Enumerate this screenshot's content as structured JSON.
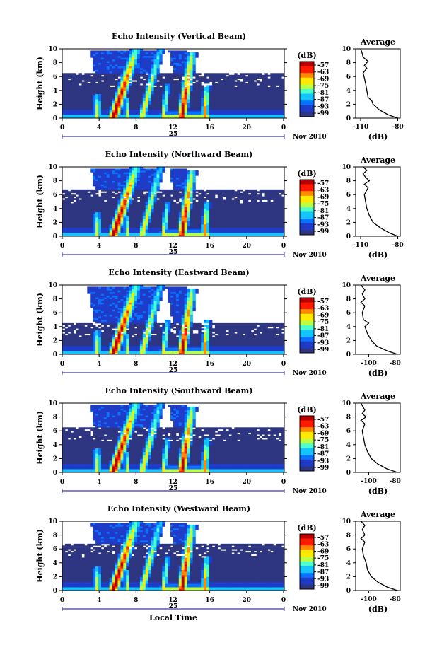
{
  "chart_data": [
    {
      "type": "heatmap",
      "title": "Echo Intensity (Vertical Beam)",
      "ylabel": "Height (km)",
      "x_ticks": [
        "0",
        "4",
        "8",
        "12",
        "16",
        "20",
        "0"
      ],
      "y_ticks": [
        "0",
        "2",
        "4",
        "6",
        "8",
        "10"
      ],
      "date_label": "25",
      "month_label": "Nov 2010",
      "xlim": [
        0,
        24
      ],
      "ylim": [
        0,
        10
      ],
      "colorbar": {
        "label": "(dB)",
        "ticks": [
          "-57",
          "-63",
          "-69",
          "-75",
          "-81",
          "-87",
          "-93",
          "-99"
        ]
      },
      "cloud_top_km": 6.5,
      "profile": {
        "title": "Average",
        "xlabel": "(dB)",
        "x_ticks": [
          "-110",
          "-80"
        ],
        "y_ticks": [
          "0",
          "2",
          "4",
          "6",
          "8",
          "10"
        ],
        "xlim": [
          -114,
          -78
        ],
        "points": [
          [
            -80,
            0
          ],
          [
            -88,
            0.5
          ],
          [
            -95,
            1.2
          ],
          [
            -100,
            2
          ],
          [
            -101,
            2.5
          ],
          [
            -104,
            3
          ],
          [
            -105,
            4
          ],
          [
            -106,
            5
          ],
          [
            -107,
            5.8
          ],
          [
            -108,
            6.5
          ],
          [
            -105,
            7.2
          ],
          [
            -107,
            7.6
          ],
          [
            -104,
            8.2
          ],
          [
            -108,
            8.8
          ],
          [
            -109,
            9.5
          ],
          [
            -110,
            10
          ]
        ]
      }
    },
    {
      "type": "heatmap",
      "title": "Echo Intensity (Northward Beam)",
      "ylabel": "Height (km)",
      "x_ticks": [
        "0",
        "4",
        "8",
        "12",
        "16",
        "20",
        "0"
      ],
      "y_ticks": [
        "0",
        "2",
        "4",
        "6",
        "8",
        "10"
      ],
      "date_label": "25",
      "month_label": "Nov 2010",
      "xlim": [
        0,
        24
      ],
      "ylim": [
        0,
        10
      ],
      "colorbar": {
        "label": "(dB)",
        "ticks": [
          "-57",
          "-63",
          "-69",
          "-75",
          "-81",
          "-87",
          "-93",
          "-99"
        ]
      },
      "cloud_top_km": 6.8,
      "profile": {
        "title": "Average",
        "xlabel": "(dB)",
        "x_ticks": [
          "-110",
          "-80"
        ],
        "y_ticks": [
          "0",
          "2",
          "4",
          "6",
          "8",
          "10"
        ],
        "xlim": [
          -114,
          -78
        ],
        "points": [
          [
            -80,
            0
          ],
          [
            -87,
            0.5
          ],
          [
            -94,
            1.2
          ],
          [
            -100,
            2
          ],
          [
            -103,
            3
          ],
          [
            -105,
            4
          ],
          [
            -106,
            5
          ],
          [
            -107,
            6
          ],
          [
            -104,
            7
          ],
          [
            -107,
            7.5
          ],
          [
            -103,
            8
          ],
          [
            -106,
            8.5
          ],
          [
            -108,
            9
          ],
          [
            -105,
            9.5
          ],
          [
            -108,
            10
          ]
        ]
      }
    },
    {
      "type": "heatmap",
      "title": "Echo Intensity (Eastward Beam)",
      "ylabel": "Height (km)",
      "x_ticks": [
        "0",
        "4",
        "8",
        "12",
        "16",
        "20",
        "0"
      ],
      "y_ticks": [
        "0",
        "2",
        "4",
        "6",
        "8",
        "10"
      ],
      "date_label": "25",
      "month_label": "Nov 2010",
      "xlim": [
        0,
        24
      ],
      "ylim": [
        0,
        10
      ],
      "colorbar": {
        "label": "(dB)",
        "ticks": [
          "-57",
          "-63",
          "-69",
          "-75",
          "-81",
          "-87",
          "-93",
          "-99"
        ]
      },
      "cloud_top_km": 4.5,
      "profile": {
        "title": "Average",
        "xlabel": "(dB)",
        "x_ticks": [
          "-100",
          "-80"
        ],
        "y_ticks": [
          "0",
          "2",
          "4",
          "6",
          "8",
          "10"
        ],
        "xlim": [
          -110,
          -76
        ],
        "points": [
          [
            -78,
            0
          ],
          [
            -86,
            0.5
          ],
          [
            -94,
            1.2
          ],
          [
            -98,
            2
          ],
          [
            -101,
            3
          ],
          [
            -103,
            4
          ],
          [
            -100,
            4.5
          ],
          [
            -104,
            5
          ],
          [
            -105,
            6
          ],
          [
            -103,
            7
          ],
          [
            -106,
            7.5
          ],
          [
            -103,
            8
          ],
          [
            -105,
            8.7
          ],
          [
            -103,
            9.3
          ],
          [
            -106,
            10
          ]
        ]
      }
    },
    {
      "type": "heatmap",
      "title": "Echo Intensity (Southward Beam)",
      "ylabel": "Height (km)",
      "x_ticks": [
        "0",
        "4",
        "8",
        "12",
        "16",
        "20",
        "0"
      ],
      "y_ticks": [
        "0",
        "2",
        "4",
        "6",
        "8",
        "10"
      ],
      "date_label": "25",
      "month_label": "Nov 2010",
      "xlim": [
        0,
        24
      ],
      "ylim": [
        0,
        10
      ],
      "colorbar": {
        "label": "(dB)",
        "ticks": [
          "-57",
          "-63",
          "-69",
          "-75",
          "-81",
          "-87",
          "-93",
          "-99"
        ]
      },
      "cloud_top_km": 6.5,
      "profile": {
        "title": "Average",
        "xlabel": "(dB)",
        "x_ticks": [
          "-100",
          "-80"
        ],
        "y_ticks": [
          "0",
          "2",
          "4",
          "6",
          "8",
          "10"
        ],
        "xlim": [
          -110,
          -76
        ],
        "points": [
          [
            -78,
            0
          ],
          [
            -86,
            0.5
          ],
          [
            -93,
            1.2
          ],
          [
            -98,
            2
          ],
          [
            -101,
            3
          ],
          [
            -103,
            4
          ],
          [
            -104,
            5
          ],
          [
            -105,
            6
          ],
          [
            -103,
            7
          ],
          [
            -106,
            7.5
          ],
          [
            -102,
            8
          ],
          [
            -105,
            8.5
          ],
          [
            -103,
            9
          ],
          [
            -106,
            10
          ]
        ]
      }
    },
    {
      "type": "heatmap",
      "title": "Echo Intensity (Westward Beam)",
      "ylabel": "Height (km)",
      "xlabel": "Local Time",
      "x_ticks": [
        "0",
        "4",
        "8",
        "12",
        "16",
        "20",
        "0"
      ],
      "y_ticks": [
        "0",
        "2",
        "4",
        "6",
        "8",
        "10"
      ],
      "date_label": "25",
      "month_label": "Nov 2010",
      "xlim": [
        0,
        24
      ],
      "ylim": [
        0,
        10
      ],
      "colorbar": {
        "label": "(dB)",
        "ticks": [
          "-57",
          "-63",
          "-69",
          "-75",
          "-81",
          "-87",
          "-93",
          "-99"
        ]
      },
      "cloud_top_km": 6.8,
      "profile": {
        "title": "Average",
        "xlabel": "(dB)",
        "x_ticks": [
          "-100",
          "-80"
        ],
        "y_ticks": [
          "0",
          "2",
          "4",
          "6",
          "8",
          "10"
        ],
        "xlim": [
          -110,
          -76
        ],
        "points": [
          [
            -78,
            0
          ],
          [
            -86,
            0.5
          ],
          [
            -93,
            1.2
          ],
          [
            -98,
            2
          ],
          [
            -101,
            3
          ],
          [
            -102,
            4
          ],
          [
            -104,
            5
          ],
          [
            -105,
            6
          ],
          [
            -103,
            7
          ],
          [
            -106,
            7.5
          ],
          [
            -103,
            8
          ],
          [
            -105,
            8.8
          ],
          [
            -103,
            9.4
          ],
          [
            -106,
            10
          ]
        ]
      }
    }
  ]
}
